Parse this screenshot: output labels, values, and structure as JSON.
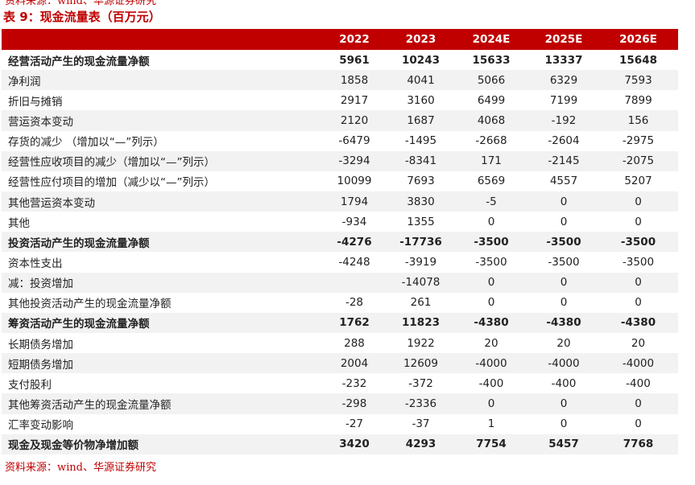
{
  "top_note": "资料来源：wind、华源证券研究",
  "title": "表 9：现金流量表（百万元）",
  "table": {
    "header": [
      "",
      "2022",
      "2023",
      "2024E",
      "2025E",
      "2026E"
    ],
    "rows": [
      {
        "label": "经营活动产生的现金流量净额",
        "bold": true,
        "values": [
          5961,
          10243,
          15633,
          13337,
          15648
        ]
      },
      {
        "label": "净利润",
        "values": [
          1858,
          4041,
          5066,
          6329,
          7593
        ]
      },
      {
        "label": "折旧与摊销",
        "values": [
          2917,
          3160,
          6499,
          7199,
          7899
        ]
      },
      {
        "label": "营运资本变动",
        "values": [
          2120,
          1687,
          4068,
          -192,
          156
        ]
      },
      {
        "label": "存货的减少 （增加以“—”列示）",
        "values": [
          -6479,
          -1495,
          -2668,
          -2604,
          -2975
        ]
      },
      {
        "label": "经营性应收项目的减少（增加以“—”列示）",
        "values": [
          -3294,
          -8341,
          171,
          -2145,
          -2075
        ]
      },
      {
        "label": "经营性应付项目的增加（减少以“—”列示）",
        "values": [
          10099,
          7693,
          6569,
          4557,
          5207
        ]
      },
      {
        "label": "其他营运资本变动",
        "values": [
          1794,
          3830,
          -5,
          0,
          0
        ]
      },
      {
        "label": "其他",
        "values": [
          -934,
          1355,
          0,
          0,
          0
        ]
      },
      {
        "label": "投资活动产生的现金流量净额",
        "bold": true,
        "values": [
          -4276,
          -17736,
          -3500,
          -3500,
          -3500
        ]
      },
      {
        "label": "资本性支出",
        "values": [
          -4248,
          -3919,
          -3500,
          -3500,
          -3500
        ]
      },
      {
        "label": "减：投资增加",
        "values": [
          null,
          -14078,
          0,
          0,
          0
        ]
      },
      {
        "label": "其他投资活动产生的现金流量净额",
        "values": [
          -28,
          261,
          0,
          0,
          0
        ]
      },
      {
        "label": "筹资活动产生的现金流量净额",
        "bold": true,
        "values": [
          1762,
          11823,
          -4380,
          -4380,
          -4380
        ]
      },
      {
        "label": "长期债务增加",
        "values": [
          288,
          1922,
          20,
          20,
          20
        ]
      },
      {
        "label": "短期债务增加",
        "values": [
          2004,
          12609,
          -4000,
          -4000,
          -4000
        ]
      },
      {
        "label": "支付股利",
        "values": [
          -232,
          -372,
          -400,
          -400,
          -400
        ]
      },
      {
        "label": "其他筹资活动产生的现金流量净额",
        "values": [
          -298,
          -2336,
          0,
          0,
          0
        ]
      },
      {
        "label": "汇率变动影响",
        "values": [
          -27,
          -37,
          1,
          0,
          0
        ]
      },
      {
        "label": "现金及现金等价物净增加额",
        "bold": true,
        "values": [
          3420,
          4293,
          7754,
          5457,
          7768
        ]
      }
    ]
  },
  "source": "资料来源：wind、华源证券研究"
}
